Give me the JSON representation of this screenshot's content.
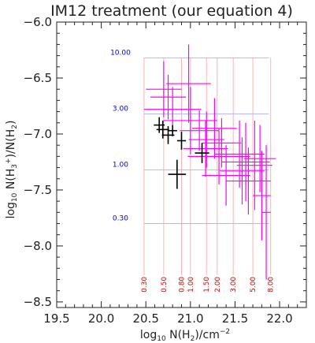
{
  "colors": {
    "axis": "#222222",
    "magenta_points": "#ff00ff",
    "black_points": "#000000",
    "x_guides": "#ffb3b3",
    "x_guide_labels": "#e00000",
    "y_guides": "#b3b3ff",
    "y_guide_labels": "#0000e0"
  },
  "chart_data": {
    "type": "scatter",
    "title": "IM12 treatment (our equation 4)",
    "xlabel_parts": [
      "log",
      "10",
      " N(H",
      "2",
      ")/cm",
      "−2"
    ],
    "ylabel_parts": [
      "log",
      "10",
      " N(H",
      "3",
      "+",
      ")/N(H",
      "2",
      ")"
    ],
    "xlim": [
      19.5,
      22.3
    ],
    "ylim": [
      -8.55,
      -6.0
    ],
    "x_ticks": [
      19.5,
      20.0,
      20.5,
      21.0,
      21.5,
      22.0
    ],
    "x_tick_labels": [
      "19.5",
      "20.0",
      "20.5",
      "21.0",
      "21.5",
      "22.0"
    ],
    "y_ticks": [
      -6.0,
      -6.5,
      -7.0,
      -7.5,
      -8.0,
      -8.5
    ],
    "y_tick_labels": [
      "−6.0",
      "−6.5",
      "−7.0",
      "−7.5",
      "−8.0",
      "−8.5"
    ],
    "grid": false,
    "guide_region": {
      "x": [
        20.48,
        21.88
      ],
      "y": [
        -8.26,
        -6.32
      ]
    },
    "x_guides": [
      {
        "x": 20.48,
        "label": "0.30"
      },
      {
        "x": 20.7,
        "label": "0.50"
      },
      {
        "x": 20.9,
        "label": "0.80"
      },
      {
        "x": 21.0,
        "label": "1.00"
      },
      {
        "x": 21.18,
        "label": "1.50"
      },
      {
        "x": 21.3,
        "label": "2.00"
      },
      {
        "x": 21.48,
        "label": "3.00"
      },
      {
        "x": 21.7,
        "label": "5.00"
      },
      {
        "x": 21.9,
        "label": "8.00"
      }
    ],
    "y_guides": [
      {
        "y": -6.32,
        "label": "10.00"
      },
      {
        "y": -6.82,
        "label": "3.00"
      },
      {
        "y": -7.32,
        "label": "1.00"
      },
      {
        "y": -7.8,
        "label": "0.30"
      }
    ],
    "series": [
      {
        "color": "magenta",
        "points": [
          {
            "x": 20.98,
            "y": -6.55,
            "xerr": 0.25,
            "yerr": 0.35
          },
          {
            "x": 20.75,
            "y": -6.67,
            "xerr": 0.2,
            "yerr": 0.2
          },
          {
            "x": 20.8,
            "y": -6.78,
            "xerr": 0.32,
            "yerr": 0.2
          },
          {
            "x": 20.7,
            "y": -6.6,
            "xerr": 0.2,
            "yerr": 0.25
          },
          {
            "x": 21.0,
            "y": -6.88,
            "xerr": 0.3,
            "yerr": 0.3
          },
          {
            "x": 21.1,
            "y": -6.97,
            "xerr": 0.22,
            "yerr": 0.18
          },
          {
            "x": 21.18,
            "y": -7.05,
            "xerr": 0.2,
            "yerr": 0.25
          },
          {
            "x": 21.27,
            "y": -6.95,
            "xerr": 0.25,
            "yerr": 0.27
          },
          {
            "x": 21.17,
            "y": -7.13,
            "xerr": 0.25,
            "yerr": 0.25
          },
          {
            "x": 21.35,
            "y": -7.08,
            "xerr": 0.22,
            "yerr": 0.22
          },
          {
            "x": 21.32,
            "y": -7.2,
            "xerr": 0.35,
            "yerr": 0.25
          },
          {
            "x": 21.55,
            "y": -7.18,
            "xerr": 0.28,
            "yerr": 0.3
          },
          {
            "x": 21.62,
            "y": -7.25,
            "xerr": 0.27,
            "yerr": 0.35
          },
          {
            "x": 21.58,
            "y": -7.33,
            "xerr": 0.25,
            "yerr": 0.3
          },
          {
            "x": 21.72,
            "y": -7.28,
            "xerr": 0.2,
            "yerr": 0.4
          },
          {
            "x": 21.78,
            "y": -7.22,
            "xerr": 0.18,
            "yerr": 0.3
          },
          {
            "x": 21.4,
            "y": -7.37,
            "xerr": 0.27,
            "yerr": 0.27
          },
          {
            "x": 21.65,
            "y": -7.42,
            "xerr": 0.25,
            "yerr": 0.3
          },
          {
            "x": 21.8,
            "y": -7.55,
            "xerr": 0.1,
            "yerr": 0.4
          },
          {
            "x": 21.85,
            "y": -7.7,
            "xerr": 0.05,
            "yerr": 0.6
          }
        ]
      },
      {
        "color": "black",
        "points": [
          {
            "x": 20.65,
            "y": -6.92,
            "xerr": 0.06,
            "yerr": 0.07
          },
          {
            "x": 20.69,
            "y": -6.96,
            "xerr": 0.07,
            "yerr": 0.08
          },
          {
            "x": 20.75,
            "y": -7.01,
            "xerr": 0.07,
            "yerr": 0.08
          },
          {
            "x": 20.8,
            "y": -6.97,
            "xerr": 0.05,
            "yerr": 0.05
          },
          {
            "x": 20.9,
            "y": -7.06,
            "xerr": 0.05,
            "yerr": 0.08
          },
          {
            "x": 20.85,
            "y": -7.36,
            "xerr": 0.1,
            "yerr": 0.13
          },
          {
            "x": 21.13,
            "y": -7.17,
            "xerr": 0.08,
            "yerr": 0.09
          }
        ]
      }
    ]
  }
}
